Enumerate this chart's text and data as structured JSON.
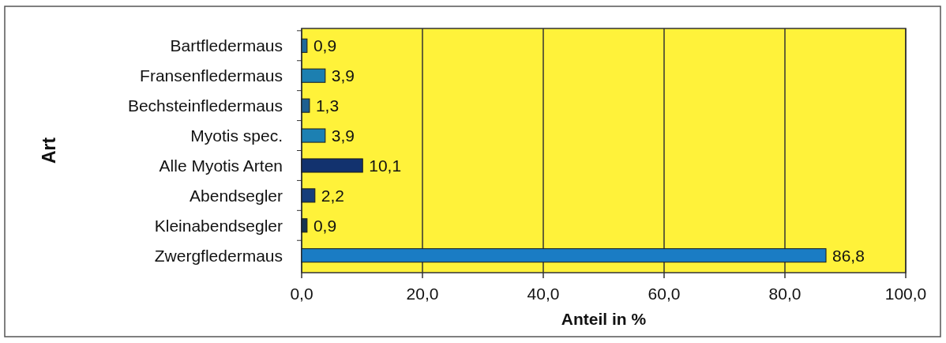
{
  "chart_data": {
    "type": "bar",
    "orientation": "horizontal",
    "xlabel": "Anteil in %",
    "ylabel": "Art",
    "categories": [
      "Bartfledermaus",
      "Fransenfledermaus",
      "Bechsteinfledermaus",
      "Myotis spec.",
      "Alle Myotis Arten",
      "Abendsegler",
      "Kleinabendsegler",
      "Zwergfledermaus"
    ],
    "values": [
      0.9,
      3.9,
      1.3,
      3.9,
      10.1,
      2.2,
      0.9,
      86.8
    ],
    "colors": [
      "#1f6a9a",
      "#1c7fb0",
      "#1f6090",
      "#1c80b2",
      "#12326e",
      "#173e7a",
      "#173550",
      "#1a7cc4"
    ],
    "value_labels": [
      "0,9",
      "3,9",
      "1,3",
      "3,9",
      "10,1",
      "2,2",
      "0,9",
      "86,8"
    ],
    "xlim": [
      0,
      100
    ],
    "xticks": [
      {
        "value": 0,
        "label": "0,0"
      },
      {
        "value": 20,
        "label": "20,0"
      },
      {
        "value": 40,
        "label": "40,0"
      },
      {
        "value": 60,
        "label": "60,0"
      },
      {
        "value": 80,
        "label": "80,0"
      },
      {
        "value": 100,
        "label": "100,0"
      }
    ],
    "grid": "x"
  }
}
